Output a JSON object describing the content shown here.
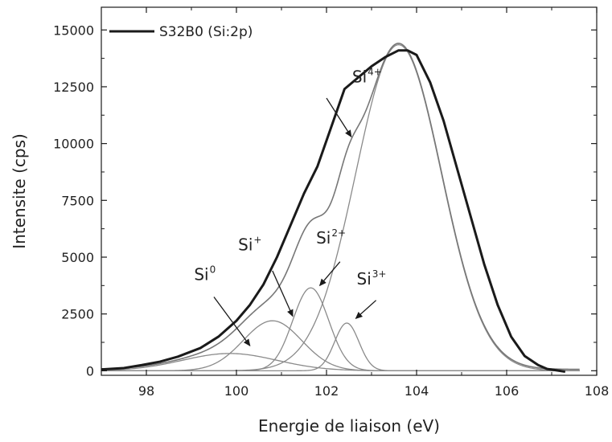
{
  "chart_data": {
    "type": "line",
    "title": "",
    "xlabel": "Energie de liaison (eV)",
    "ylabel": "Intensite (cps)",
    "xlim": [
      97,
      108
    ],
    "ylim": [
      -200,
      16000
    ],
    "xticks": [
      98,
      100,
      102,
      104,
      106,
      108
    ],
    "yticks": [
      0,
      2500,
      5000,
      7500,
      10000,
      12500,
      15000
    ],
    "xtick_labels": [
      "98",
      "100",
      "102",
      "104",
      "106",
      "108"
    ],
    "ytick_labels": [
      "0",
      "2500",
      "5000",
      "7500",
      "10000",
      "12500",
      "15000"
    ],
    "grid": false,
    "legend": {
      "position": "top-left",
      "entries": [
        "S32B0 (Si:2p)"
      ]
    },
    "series": [
      {
        "name": "S32B0 (Si:2p)",
        "role": "measured",
        "color": "#1a1a1a",
        "x": [
          97.0,
          97.5,
          97.9,
          98.3,
          98.7,
          99.2,
          99.6,
          100.0,
          100.3,
          100.6,
          100.9,
          101.2,
          101.5,
          101.8,
          102.1,
          102.4,
          102.7,
          103.0,
          103.3,
          103.6,
          103.8,
          104.0,
          104.3,
          104.6,
          104.9,
          105.2,
          105.5,
          105.8,
          106.1,
          106.4,
          106.7,
          106.9,
          107.1,
          107.3
        ],
        "y": [
          60,
          120,
          250,
          400,
          620,
          1000,
          1500,
          2200,
          2900,
          3800,
          5000,
          6400,
          7800,
          9000,
          10700,
          12400,
          12900,
          13400,
          13800,
          14100,
          14100,
          13900,
          12700,
          11000,
          8900,
          6800,
          4700,
          2900,
          1500,
          650,
          250,
          80,
          20,
          -40
        ]
      },
      {
        "name": "Si0",
        "role": "component",
        "color": "#8a8a8a",
        "center": 99.85,
        "sigma": 1.05,
        "amplitude": 760
      },
      {
        "name": "Si+",
        "role": "component",
        "color": "#8a8a8a",
        "center": 100.8,
        "sigma": 0.65,
        "amplitude": 2200
      },
      {
        "name": "Si2+",
        "role": "component",
        "color": "#8a8a8a",
        "center": 101.65,
        "sigma": 0.4,
        "amplitude": 3650
      },
      {
        "name": "Si3+",
        "role": "component",
        "color": "#8a8a8a",
        "center": 102.45,
        "sigma": 0.27,
        "amplitude": 2100
      },
      {
        "name": "Si4+",
        "role": "component",
        "color": "#8a8a8a",
        "center": 103.6,
        "sigma": 0.95,
        "amplitude": 14350
      }
    ],
    "annotations": [
      {
        "base": "Si",
        "sup": "0",
        "label_at": [
          99.3,
          4000
        ],
        "arrow_from": [
          100.3,
          1100
        ],
        "arrow_to": [
          99.5,
          3250
        ],
        "arrow_tip_at": "from"
      },
      {
        "base": "Si",
        "sup": "+",
        "label_at": [
          100.3,
          5300
        ],
        "arrow_from": [
          100.8,
          4400
        ],
        "arrow_to": [
          101.25,
          2400
        ],
        "arrow_tip_at": "to"
      },
      {
        "base": "Si",
        "sup": "2+",
        "label_at": [
          102.1,
          5600
        ],
        "arrow_from": [
          102.3,
          4800
        ],
        "arrow_to": [
          101.85,
          3750
        ],
        "arrow_tip_at": "to"
      },
      {
        "base": "Si",
        "sup": "3+",
        "label_at": [
          103.0,
          3800
        ],
        "arrow_from": [
          103.1,
          3100
        ],
        "arrow_to": [
          102.65,
          2300
        ],
        "arrow_tip_at": "to"
      },
      {
        "base": "Si",
        "sup": "4+",
        "label_at": [
          102.9,
          12700
        ],
        "arrow_from": [
          102.0,
          12000
        ],
        "arrow_to": [
          102.55,
          10300
        ],
        "arrow_tip_at": "to"
      }
    ]
  }
}
